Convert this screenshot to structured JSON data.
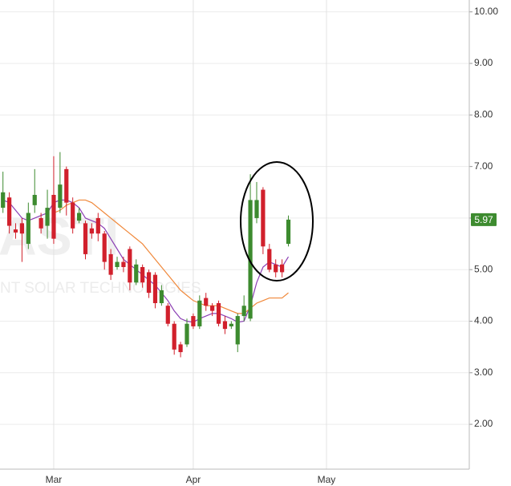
{
  "chart_data": {
    "type": "candlestick",
    "watermark": "ASTI",
    "watermark_sub": "NT SOLAR TECHNOLOGIES",
    "categories": [
      null,
      null,
      null,
      null,
      null,
      null,
      null,
      null,
      "Mar",
      null,
      null,
      null,
      null,
      null,
      null,
      null,
      null,
      null,
      null,
      null,
      null,
      null,
      null,
      null,
      null,
      null,
      null,
      null,
      null,
      null,
      "Apr",
      null,
      null,
      null,
      null,
      null,
      null,
      null,
      null,
      null,
      null,
      null,
      null,
      null,
      null,
      null,
      null,
      null,
      null,
      null,
      null,
      "May"
    ],
    "open": [
      6.2,
      6.4,
      5.78,
      5.9,
      5.5,
      6.25,
      6.0,
      5.85,
      6.45,
      6.2,
      6.95,
      6.3,
      5.95,
      5.9,
      5.8,
      6.0,
      5.7,
      5.3,
      5.05,
      5.15,
      5.4,
      4.75,
      5.05,
      4.95,
      4.9,
      4.35,
      4.3,
      3.95,
      3.55,
      3.55,
      4.1,
      3.9,
      4.45,
      4.3,
      4.35,
      4.0,
      3.9,
      3.55,
      4.1,
      4.05,
      6.0,
      6.55,
      5.4,
      5.1,
      5.1,
      5.5,
      null,
      null,
      null,
      null,
      null,
      null
    ],
    "high": [
      6.9,
      6.5,
      5.9,
      6.0,
      6.3,
      6.95,
      6.1,
      6.55,
      7.2,
      7.28,
      7.0,
      6.4,
      6.2,
      5.95,
      5.9,
      6.1,
      5.75,
      5.4,
      5.25,
      5.25,
      5.45,
      5.2,
      5.1,
      5.0,
      4.95,
      4.7,
      4.35,
      4.0,
      3.6,
      4.05,
      4.15,
      4.5,
      4.55,
      4.35,
      4.4,
      4.1,
      4.0,
      4.15,
      4.5,
      6.85,
      6.7,
      6.6,
      5.5,
      5.2,
      5.2,
      6.05,
      null,
      null,
      null,
      null,
      null,
      null
    ],
    "low": [
      6.1,
      5.7,
      5.6,
      5.15,
      5.4,
      6.1,
      5.7,
      5.6,
      5.5,
      6.1,
      6.05,
      5.7,
      5.9,
      5.2,
      5.6,
      5.55,
      5.0,
      4.8,
      5.0,
      4.95,
      4.6,
      4.7,
      4.65,
      4.45,
      4.25,
      4.3,
      3.9,
      3.35,
      3.3,
      3.5,
      3.85,
      3.85,
      4.2,
      4.1,
      3.9,
      3.75,
      3.85,
      3.4,
      4.0,
      4.0,
      5.9,
      5.3,
      4.95,
      4.85,
      4.85,
      5.45,
      null,
      null,
      null,
      null,
      null,
      null
    ],
    "close": [
      6.5,
      5.85,
      5.72,
      5.7,
      6.1,
      6.45,
      5.8,
      6.2,
      5.6,
      6.65,
      6.3,
      5.8,
      6.1,
      5.3,
      5.7,
      5.7,
      5.15,
      4.9,
      5.15,
      5.05,
      4.75,
      5.1,
      4.75,
      4.55,
      4.35,
      4.6,
      3.95,
      3.45,
      3.4,
      3.95,
      3.9,
      4.4,
      4.3,
      4.2,
      3.95,
      3.85,
      3.95,
      4.1,
      4.3,
      6.35,
      6.35,
      5.45,
      5.0,
      4.95,
      4.95,
      5.97,
      null,
      null,
      null,
      null,
      null,
      null
    ],
    "up_color": "#3d8b2f",
    "down_color": "#d1202c",
    "lines": [
      {
        "color": "#8b3fb4",
        "values": [
          6.35,
          6.3,
          6.15,
          6.0,
          5.95,
          6.0,
          6.05,
          6.1,
          6.3,
          6.35,
          6.35,
          6.3,
          6.2,
          6.0,
          5.95,
          5.9,
          5.8,
          5.6,
          5.4,
          5.2,
          5.1,
          5.0,
          4.9,
          4.8,
          4.7,
          4.55,
          4.4,
          4.2,
          4.05,
          4.0,
          3.98,
          4.05,
          4.1,
          4.15,
          4.15,
          4.1,
          4.05,
          3.98,
          4.0,
          4.3,
          4.75,
          5.05,
          5.15,
          5.1,
          5.05,
          5.25,
          null,
          null,
          null,
          null,
          null,
          null
        ]
      },
      {
        "color": "#f0883a",
        "values": [
          null,
          null,
          null,
          null,
          null,
          null,
          null,
          null,
          6.1,
          6.15,
          6.25,
          6.3,
          6.35,
          6.35,
          6.3,
          6.2,
          6.1,
          6.0,
          5.9,
          5.8,
          5.7,
          5.6,
          5.5,
          5.35,
          5.2,
          5.05,
          4.9,
          4.75,
          4.6,
          4.5,
          4.4,
          4.35,
          4.3,
          4.3,
          4.3,
          4.25,
          4.2,
          4.15,
          4.15,
          4.25,
          4.35,
          4.4,
          4.45,
          4.45,
          4.45,
          4.55,
          null,
          null,
          null,
          null,
          null,
          null
        ]
      }
    ],
    "last_price": 5.97,
    "ylim": [
      1.13,
      10.23
    ],
    "yticks": [
      {
        "value": 2,
        "label": "2.00"
      },
      {
        "value": 3,
        "label": "3.00"
      },
      {
        "value": 4,
        "label": "4.00"
      },
      {
        "value": 5,
        "label": "5.00"
      },
      {
        "value": 6,
        "label": "6.00"
      },
      {
        "value": 7,
        "label": "7.00"
      },
      {
        "value": 8,
        "label": "8.00"
      },
      {
        "value": 9,
        "label": "9.00"
      },
      {
        "value": 10,
        "label": "10.00"
      }
    ],
    "grid": true
  }
}
